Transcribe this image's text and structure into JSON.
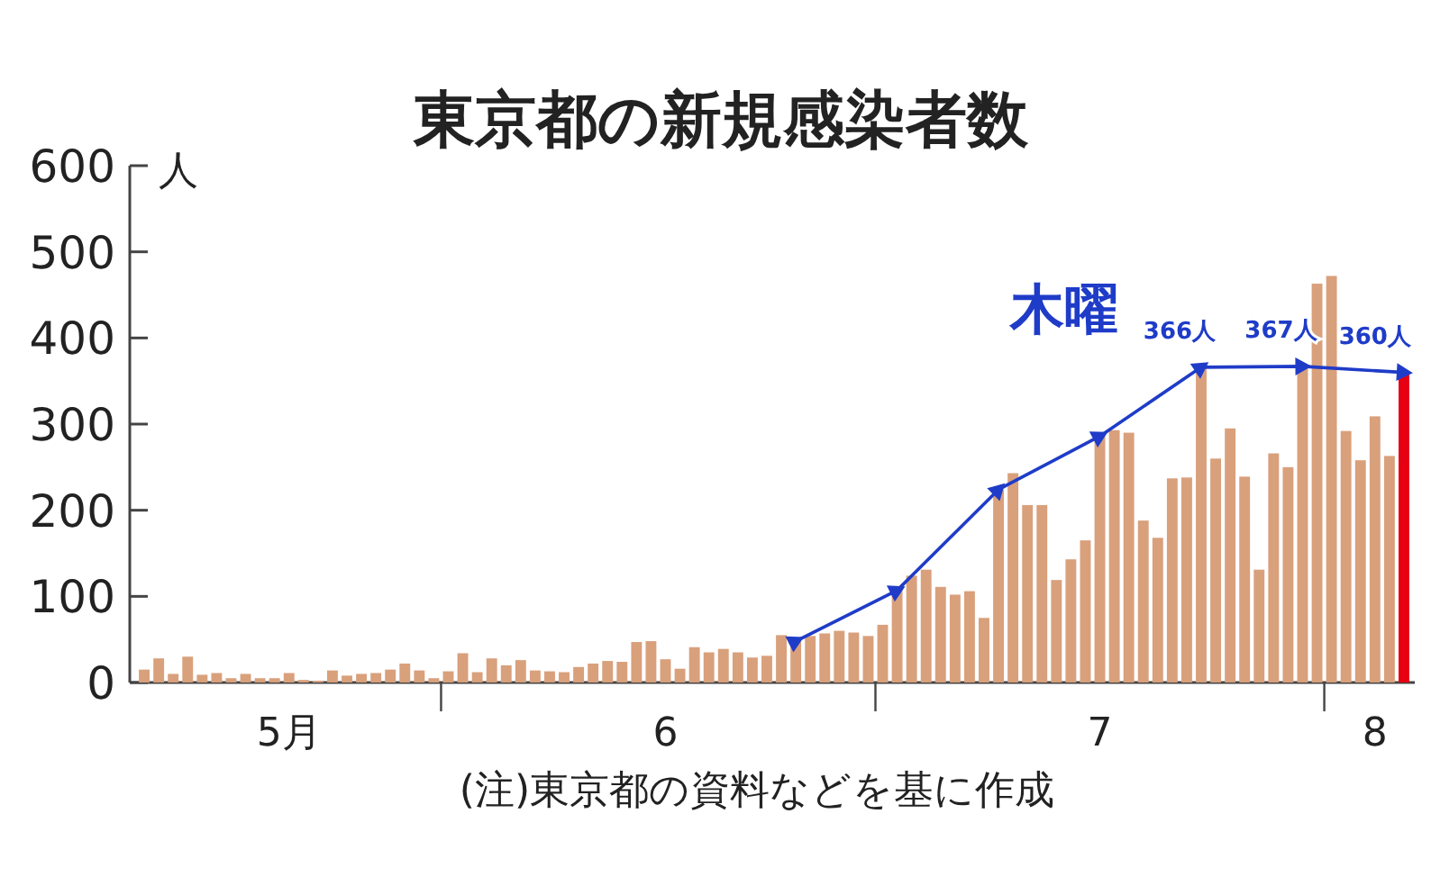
{
  "chart_data": {
    "type": "bar",
    "title": "東京都の新規感染者数",
    "ylabel": "人",
    "annotations": [
      "(注)東京都の資料などを基に作成"
    ],
    "xlim": [
      "--05-10",
      "--08-06T18:00"
    ],
    "xticks": [
      {
        "value": "--05-21",
        "label": "5月"
      },
      {
        "value": "--05-31T12:00",
        "label": null
      },
      {
        "value": "--06-16",
        "label": "6"
      },
      {
        "value": "--06-30T12:00",
        "label": null
      },
      {
        "value": "--07-16",
        "label": "7"
      },
      {
        "value": "--07-31T12:00",
        "label": null
      },
      {
        "value": "--08-04",
        "label": "8"
      }
    ],
    "ylim": [
      0,
      600
    ],
    "yticks": [
      0,
      100,
      200,
      300,
      400,
      500,
      600
    ],
    "marker": "triangle",
    "series": [
      {
        "x": [
          "--05-11",
          "--05-12",
          "--05-13",
          "--05-14",
          "--05-15",
          "--05-16",
          "--05-17",
          "--05-18",
          "--05-19",
          "--05-20",
          "--05-21",
          "--05-22",
          "--05-23",
          "--05-24",
          "--05-25",
          "--05-26",
          "--05-27",
          "--05-28",
          "--05-29",
          "--05-30",
          "--05-31",
          "--06-01",
          "--06-02",
          "--06-03",
          "--06-04",
          "--06-05",
          "--06-06",
          "--06-07",
          "--06-08",
          "--06-09",
          "--06-10",
          "--06-11",
          "--06-12",
          "--06-13",
          "--06-14",
          "--06-15",
          "--06-16",
          "--06-17",
          "--06-18",
          "--06-19",
          "--06-20",
          "--06-21",
          "--06-22",
          "--06-23",
          "--06-24",
          "--06-25",
          "--06-26",
          "--06-27",
          "--06-28",
          "--06-29",
          "--06-30",
          "--07-01",
          "--07-02",
          "--07-03",
          "--07-04",
          "--07-05",
          "--07-06",
          "--07-07",
          "--07-08",
          "--07-09",
          "--07-10",
          "--07-11",
          "--07-12",
          "--07-13",
          "--07-14",
          "--07-15",
          "--07-16",
          "--07-17",
          "--07-18",
          "--07-19",
          "--07-20",
          "--07-21",
          "--07-22",
          "--07-23",
          "--07-24",
          "--07-25",
          "--07-26",
          "--07-27",
          "--07-28",
          "--07-29",
          "--07-30",
          "--07-31",
          "--08-01",
          "--08-02",
          "--08-03",
          "--08-04",
          "--08-05",
          "--08-06"
        ],
        "values": [
          15,
          28,
          10,
          30,
          9,
          11,
          5,
          10,
          5,
          5,
          11,
          3,
          2,
          14,
          8,
          10,
          11,
          15,
          22,
          14,
          5,
          13,
          34,
          12,
          28,
          20,
          26,
          14,
          13,
          12,
          18,
          22,
          25,
          24,
          47,
          48,
          27,
          16,
          41,
          35,
          39,
          35,
          29,
          31,
          55,
          48,
          54,
          57,
          60,
          58,
          54,
          67,
          107,
          124,
          131,
          111,
          102,
          106,
          75,
          224,
          243,
          206,
          206,
          119,
          143,
          165,
          286,
          293,
          290,
          188,
          168,
          237,
          238,
          366,
          260,
          295,
          239,
          131,
          266,
          250,
          367,
          463,
          472,
          292,
          258,
          309,
          263,
          360
        ],
        "colors": [
          "#d9a07c",
          "#d9a07c",
          "#d9a07c",
          "#d9a07c",
          "#d9a07c",
          "#d9a07c",
          "#d9a07c",
          "#d9a07c",
          "#d9a07c",
          "#d9a07c",
          "#d9a07c",
          "#d9a07c",
          "#d9a07c",
          "#d9a07c",
          "#d9a07c",
          "#d9a07c",
          "#d9a07c",
          "#d9a07c",
          "#d9a07c",
          "#d9a07c",
          "#d9a07c",
          "#d9a07c",
          "#d9a07c",
          "#d9a07c",
          "#d9a07c",
          "#d9a07c",
          "#d9a07c",
          "#d9a07c",
          "#d9a07c",
          "#d9a07c",
          "#d9a07c",
          "#d9a07c",
          "#d9a07c",
          "#d9a07c",
          "#d9a07c",
          "#d9a07c",
          "#d9a07c",
          "#d9a07c",
          "#d9a07c",
          "#d9a07c",
          "#d9a07c",
          "#d9a07c",
          "#d9a07c",
          "#d9a07c",
          "#d9a07c",
          "#d9a07c",
          "#d9a07c",
          "#d9a07c",
          "#d9a07c",
          "#d9a07c",
          "#d9a07c",
          "#d9a07c",
          "#d9a07c",
          "#d9a07c",
          "#d9a07c",
          "#d9a07c",
          "#d9a07c",
          "#d9a07c",
          "#d9a07c",
          "#d9a07c",
          "#d9a07c",
          "#d9a07c",
          "#d9a07c",
          "#d9a07c",
          "#d9a07c",
          "#d9a07c",
          "#d9a07c",
          "#d9a07c",
          "#d9a07c",
          "#d9a07c",
          "#d9a07c",
          "#d9a07c",
          "#d9a07c",
          "#d9a07c",
          "#d9a07c",
          "#d9a07c",
          "#d9a07c",
          "#d9a07c",
          "#d9a07c",
          "#d9a07c",
          "#d9a07c",
          "#d9a07c",
          "#d9a07c",
          "#d9a07c",
          "#d9a07c",
          "#d9a07c",
          "#d9a07c",
          "#e60012"
        ]
      },
      {
        "type": "line",
        "name": "木曜",
        "color": "#1f3cc8",
        "x": [
          "--06-25",
          "--07-02",
          "--07-09",
          "--07-16",
          "--07-23",
          "--07-30",
          "--08-06"
        ],
        "values": [
          48,
          107,
          224,
          286,
          366,
          367,
          360
        ],
        "value_labels": [
          null,
          null,
          null,
          null,
          "366人",
          "367人",
          "360人"
        ]
      }
    ]
  }
}
